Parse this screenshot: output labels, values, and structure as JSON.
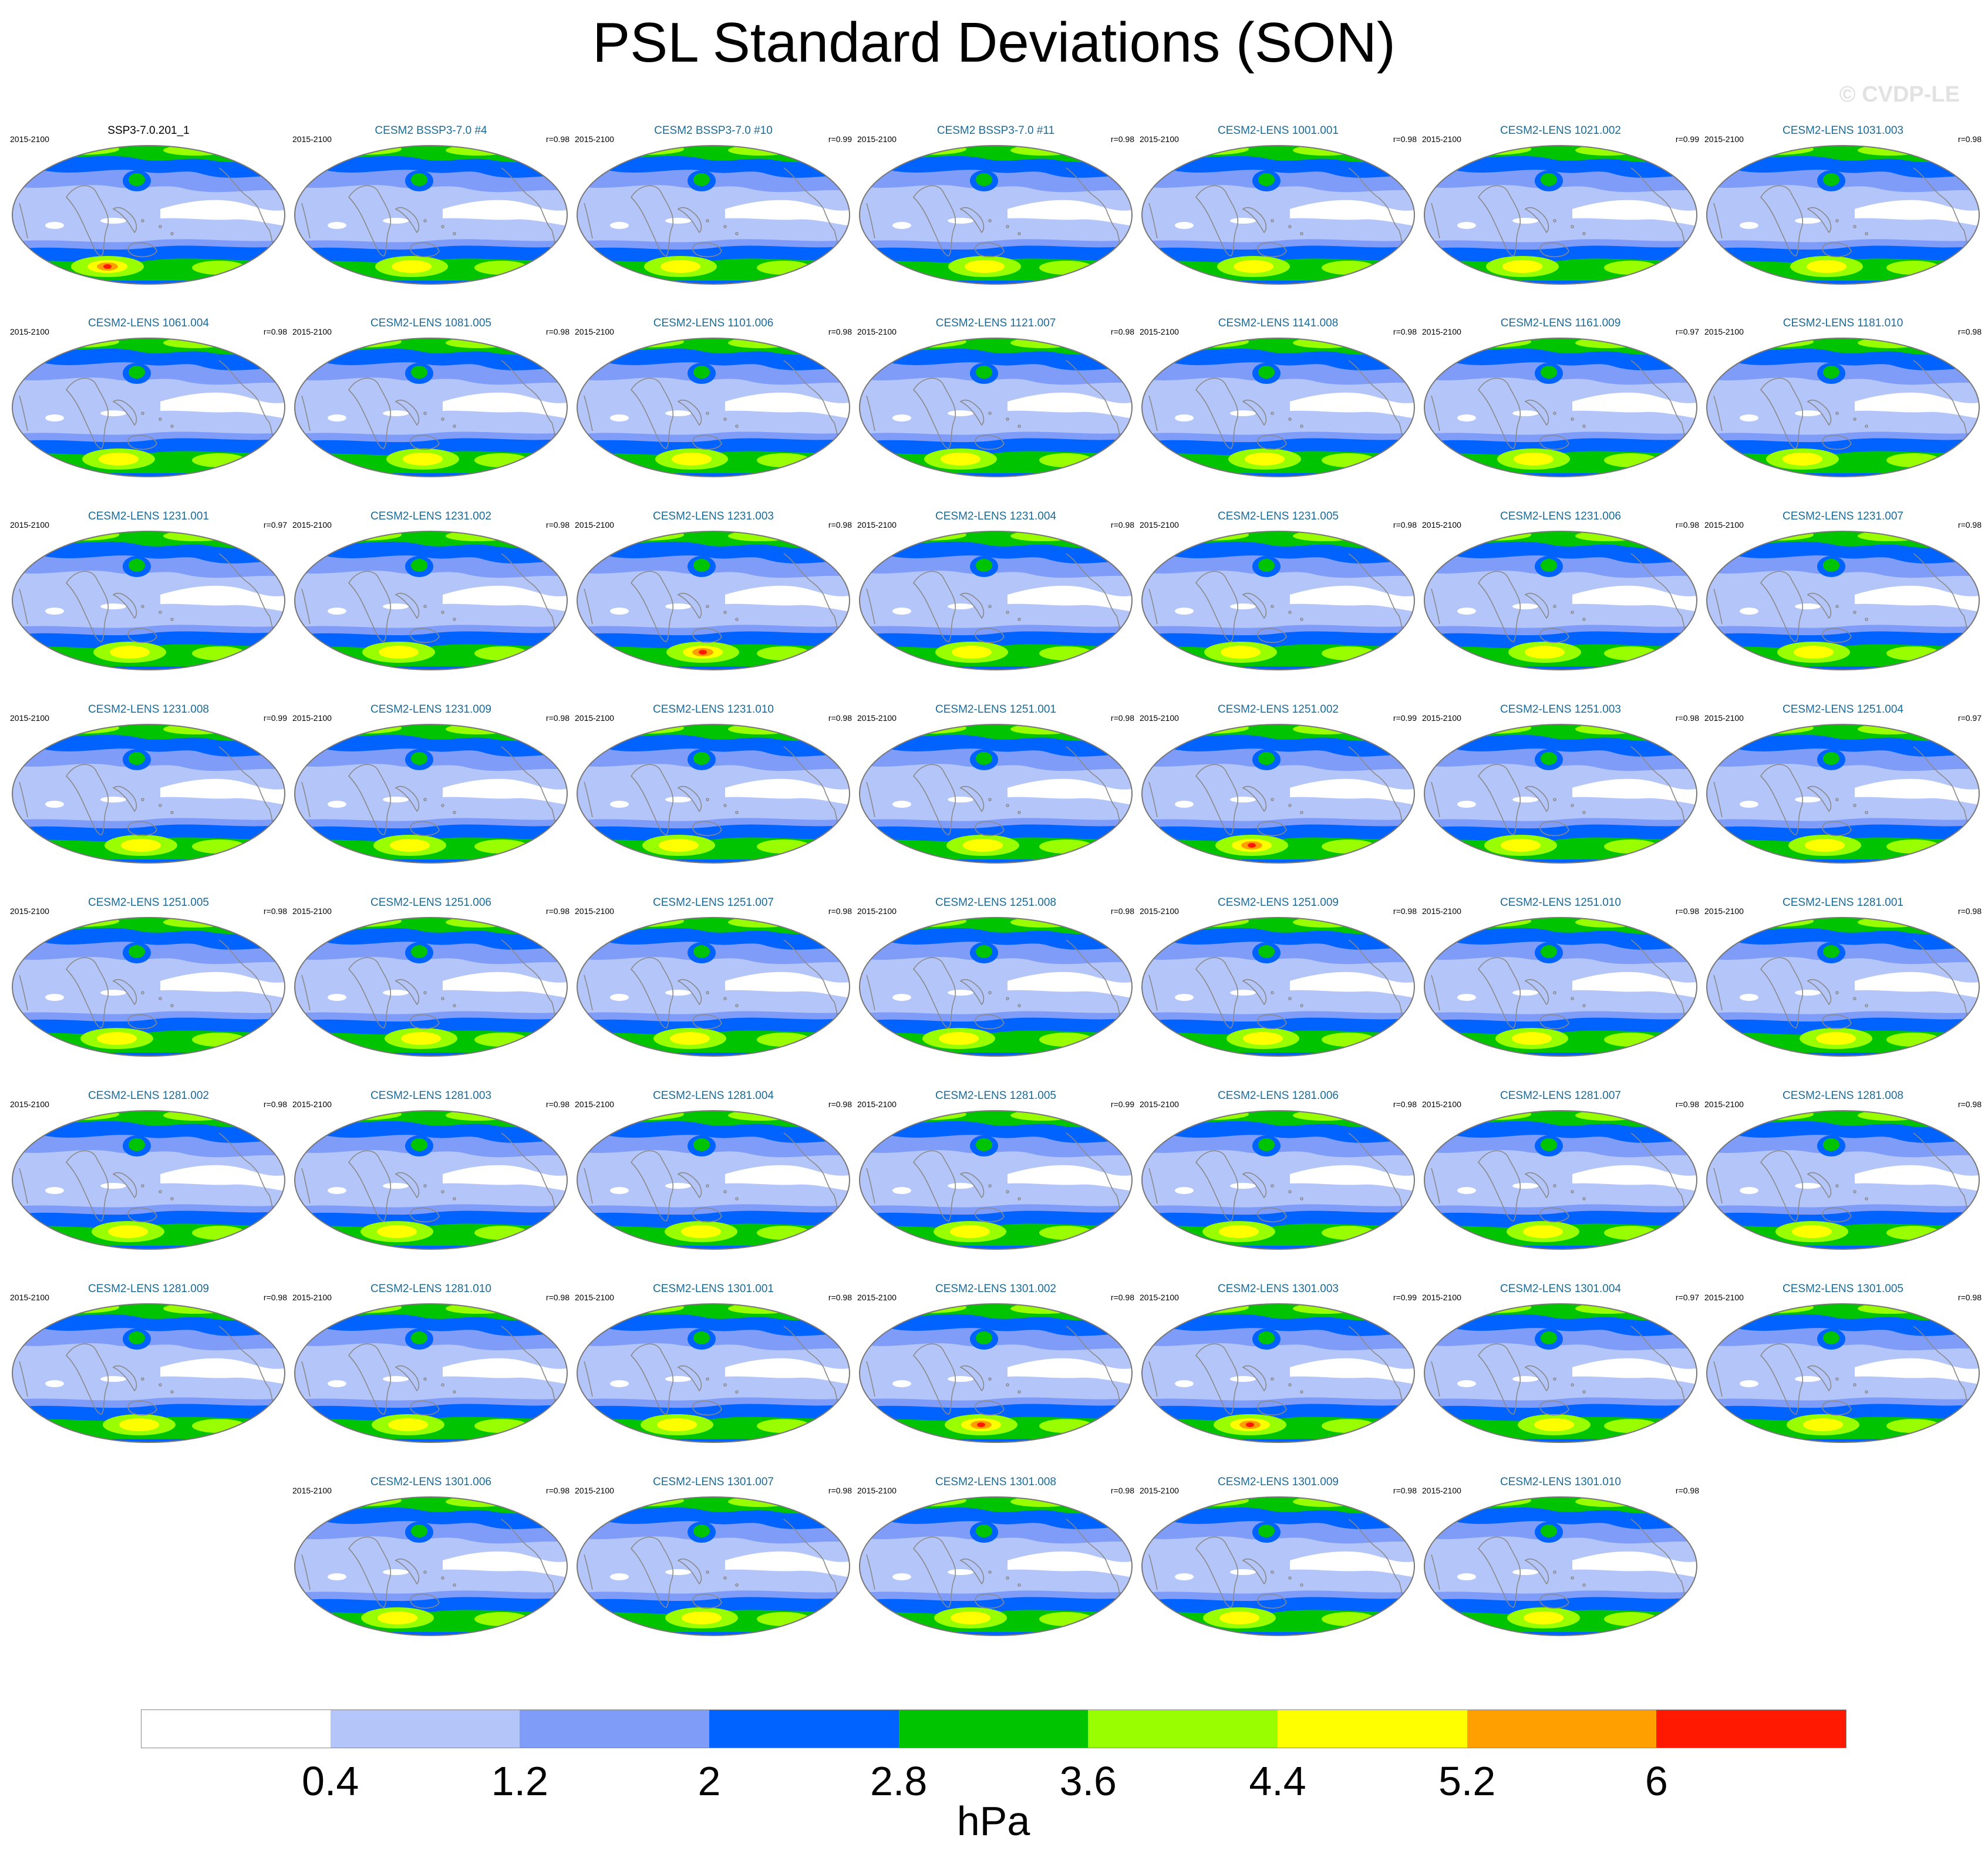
{
  "title": "PSL Standard Deviations (SON)",
  "watermark": "© CVDP-LE",
  "period": "2015-2100",
  "panels": [
    {
      "name": "SSP3-7.0.201_1",
      "r": "",
      "ref": true,
      "peak": "high"
    },
    {
      "name": "CESM2 BSSP3-7.0 #4",
      "r": "r=0.98",
      "peak": "mid"
    },
    {
      "name": "CESM2 BSSP3-7.0 #10",
      "r": "r=0.99",
      "peak": "mid"
    },
    {
      "name": "CESM2 BSSP3-7.0 #11",
      "r": "r=0.98",
      "peak": "mid"
    },
    {
      "name": "CESM2-LENS 1001.001",
      "r": "r=0.98",
      "peak": "mid"
    },
    {
      "name": "CESM2-LENS 1021.002",
      "r": "r=0.99",
      "peak": "mid"
    },
    {
      "name": "CESM2-LENS 1031.003",
      "r": "r=0.98",
      "peak": "mid"
    },
    {
      "name": "CESM2-LENS 1061.004",
      "r": "r=0.98",
      "peak": "mid"
    },
    {
      "name": "CESM2-LENS 1081.005",
      "r": "r=0.98",
      "peak": "mid"
    },
    {
      "name": "CESM2-LENS 1101.006",
      "r": "r=0.98",
      "peak": "mid"
    },
    {
      "name": "CESM2-LENS 1121.007",
      "r": "r=0.98",
      "peak": "mid"
    },
    {
      "name": "CESM2-LENS 1141.008",
      "r": "r=0.98",
      "peak": "mid"
    },
    {
      "name": "CESM2-LENS 1161.009",
      "r": "r=0.97",
      "peak": "mid"
    },
    {
      "name": "CESM2-LENS 1181.010",
      "r": "r=0.98",
      "peak": "mid"
    },
    {
      "name": "CESM2-LENS 1231.001",
      "r": "r=0.97",
      "peak": "mid"
    },
    {
      "name": "CESM2-LENS 1231.002",
      "r": "r=0.98",
      "peak": "mid"
    },
    {
      "name": "CESM2-LENS 1231.003",
      "r": "r=0.98",
      "peak": "high"
    },
    {
      "name": "CESM2-LENS 1231.004",
      "r": "r=0.98",
      "peak": "mid"
    },
    {
      "name": "CESM2-LENS 1231.005",
      "r": "r=0.98",
      "peak": "mid"
    },
    {
      "name": "CESM2-LENS 1231.006",
      "r": "r=0.98",
      "peak": "mid"
    },
    {
      "name": "CESM2-LENS 1231.007",
      "r": "r=0.98",
      "peak": "mid"
    },
    {
      "name": "CESM2-LENS 1231.008",
      "r": "r=0.99",
      "peak": "mid"
    },
    {
      "name": "CESM2-LENS 1231.009",
      "r": "r=0.98",
      "peak": "mid"
    },
    {
      "name": "CESM2-LENS 1231.010",
      "r": "r=0.98",
      "peak": "mid"
    },
    {
      "name": "CESM2-LENS 1251.001",
      "r": "r=0.98",
      "peak": "mid"
    },
    {
      "name": "CESM2-LENS 1251.002",
      "r": "r=0.99",
      "peak": "high"
    },
    {
      "name": "CESM2-LENS 1251.003",
      "r": "r=0.98",
      "peak": "mid"
    },
    {
      "name": "CESM2-LENS 1251.004",
      "r": "r=0.97",
      "peak": "mid"
    },
    {
      "name": "CESM2-LENS 1251.005",
      "r": "r=0.98",
      "peak": "mid"
    },
    {
      "name": "CESM2-LENS 1251.006",
      "r": "r=0.98",
      "peak": "mid"
    },
    {
      "name": "CESM2-LENS 1251.007",
      "r": "r=0.98",
      "peak": "mid"
    },
    {
      "name": "CESM2-LENS 1251.008",
      "r": "r=0.98",
      "peak": "mid"
    },
    {
      "name": "CESM2-LENS 1251.009",
      "r": "r=0.98",
      "peak": "mid"
    },
    {
      "name": "CESM2-LENS 1251.010",
      "r": "r=0.98",
      "peak": "mid"
    },
    {
      "name": "CESM2-LENS 1281.001",
      "r": "r=0.98",
      "peak": "mid"
    },
    {
      "name": "CESM2-LENS 1281.002",
      "r": "r=0.98",
      "peak": "mid"
    },
    {
      "name": "CESM2-LENS 1281.003",
      "r": "r=0.98",
      "peak": "mid"
    },
    {
      "name": "CESM2-LENS 1281.004",
      "r": "r=0.98",
      "peak": "mid"
    },
    {
      "name": "CESM2-LENS 1281.005",
      "r": "r=0.99",
      "peak": "mid"
    },
    {
      "name": "CESM2-LENS 1281.006",
      "r": "r=0.98",
      "peak": "mid"
    },
    {
      "name": "CESM2-LENS 1281.007",
      "r": "r=0.98",
      "peak": "mid"
    },
    {
      "name": "CESM2-LENS 1281.008",
      "r": "r=0.98",
      "peak": "mid"
    },
    {
      "name": "CESM2-LENS 1281.009",
      "r": "r=0.98",
      "peak": "mid"
    },
    {
      "name": "CESM2-LENS 1281.010",
      "r": "r=0.98",
      "peak": "mid"
    },
    {
      "name": "CESM2-LENS 1301.001",
      "r": "r=0.98",
      "peak": "mid"
    },
    {
      "name": "CESM2-LENS 1301.002",
      "r": "r=0.98",
      "peak": "high"
    },
    {
      "name": "CESM2-LENS 1301.003",
      "r": "r=0.99",
      "peak": "high"
    },
    {
      "name": "CESM2-LENS 1301.004",
      "r": "r=0.97",
      "peak": "mid"
    },
    {
      "name": "CESM2-LENS 1301.005",
      "r": "r=0.98",
      "peak": "mid"
    },
    {
      "name": "CESM2-LENS 1301.006",
      "r": "r=0.98",
      "peak": "mid"
    },
    {
      "name": "CESM2-LENS 1301.007",
      "r": "r=0.98",
      "peak": "mid"
    },
    {
      "name": "CESM2-LENS 1301.008",
      "r": "r=0.98",
      "peak": "mid"
    },
    {
      "name": "CESM2-LENS 1301.009",
      "r": "r=0.98",
      "peak": "mid"
    },
    {
      "name": "CESM2-LENS 1301.010",
      "r": "r=0.98",
      "peak": "mid"
    }
  ],
  "colors": {
    "ref_title": "#000000",
    "member_title": "#1a6b99",
    "coast": "#8a8a8a",
    "outline": "#777777"
  },
  "colorbar": {
    "units": "hPa",
    "ticks": [
      "0.4",
      "1.2",
      "2",
      "2.8",
      "3.6",
      "4.4",
      "5.2",
      "6"
    ],
    "colors": [
      "#ffffff",
      "#b4c5f9",
      "#7f9cf9",
      "#0062ff",
      "#00c400",
      "#99ff00",
      "#ffff00",
      "#ffa000",
      "#ff1900"
    ]
  }
}
